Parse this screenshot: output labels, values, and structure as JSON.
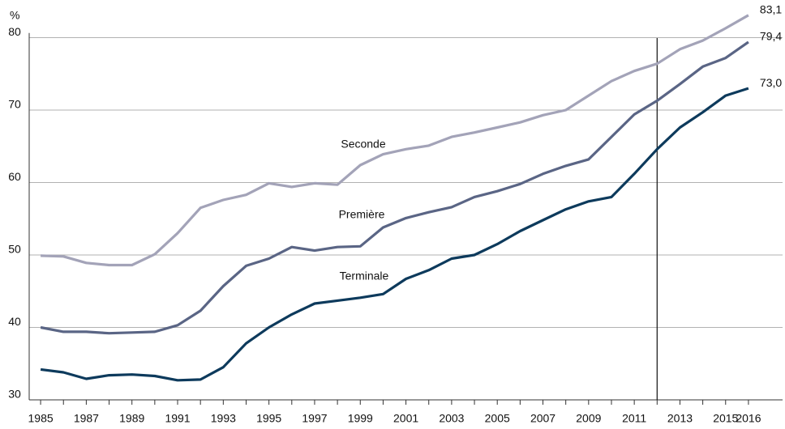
{
  "chart_data": {
    "type": "line",
    "y_label": "%",
    "x": [
      1985,
      1986,
      1987,
      1988,
      1989,
      1990,
      1991,
      1992,
      1993,
      1994,
      1995,
      1996,
      1997,
      1998,
      1999,
      2000,
      2001,
      2002,
      2003,
      2004,
      2005,
      2006,
      2007,
      2008,
      2009,
      2010,
      2011,
      2012,
      2013,
      2014,
      2015,
      2016
    ],
    "xlim": [
      1984.5,
      2016.5
    ],
    "xticks": [
      1985,
      1987,
      1989,
      1991,
      1993,
      1995,
      1997,
      1999,
      2001,
      2003,
      2005,
      2007,
      2009,
      2011,
      2013,
      2015,
      2016
    ],
    "ylim": [
      30,
      84
    ],
    "yticks": [
      30,
      40,
      50,
      60,
      70,
      80
    ],
    "grid": true,
    "vline": 2012,
    "series": [
      {
        "name": "Seconde",
        "color": "#a3a3b8",
        "end_label": "83,1",
        "values": [
          49.9,
          49.8,
          48.9,
          48.6,
          48.6,
          50.1,
          53.0,
          56.5,
          57.6,
          58.3,
          59.9,
          59.4,
          59.9,
          59.7,
          62.4,
          63.9,
          64.6,
          65.1,
          66.3,
          66.9,
          67.6,
          68.3,
          69.3,
          70.0,
          72.0,
          74.0,
          75.4,
          76.4,
          78.4,
          79.6,
          81.3,
          83.1
        ]
      },
      {
        "name": "Première",
        "color": "#5a6585",
        "end_label": "79,4",
        "values": [
          40.0,
          39.4,
          39.4,
          39.2,
          39.3,
          39.4,
          40.3,
          42.3,
          45.7,
          48.5,
          49.5,
          51.1,
          50.6,
          51.1,
          51.2,
          53.8,
          55.1,
          55.9,
          56.6,
          58.0,
          58.8,
          59.8,
          61.2,
          62.3,
          63.2,
          66.3,
          69.4,
          71.3,
          73.6,
          76.0,
          77.2,
          79.4
        ]
      },
      {
        "name": "Terminale",
        "color": "#0d3a5c",
        "end_label": "73,0",
        "values": [
          34.2,
          33.8,
          32.9,
          33.4,
          33.5,
          33.3,
          32.7,
          32.8,
          34.5,
          37.8,
          40.0,
          41.8,
          43.3,
          43.7,
          44.1,
          44.6,
          46.7,
          47.9,
          49.5,
          50.0,
          51.5,
          53.3,
          54.8,
          56.3,
          57.4,
          58.0,
          61.2,
          64.6,
          67.6,
          69.7,
          72.0,
          73.0
        ]
      }
    ]
  }
}
